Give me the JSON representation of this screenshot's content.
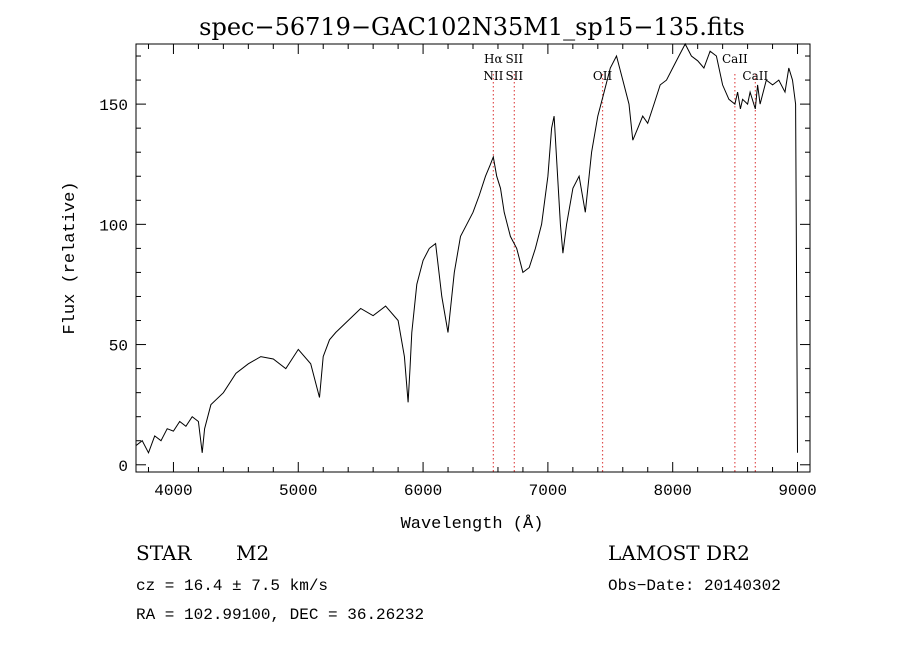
{
  "chart_data": {
    "type": "line",
    "title": "spec−56719−GAC102N35M1_sp15−135.fits",
    "xlabel": "Wavelength (Å)",
    "ylabel": "Flux (relative)",
    "xlim": [
      3700,
      9100
    ],
    "ylim": [
      -3,
      175
    ],
    "x_ticks": [
      4000,
      5000,
      6000,
      7000,
      8000,
      9000
    ],
    "y_ticks": [
      0,
      50,
      100,
      150
    ],
    "x_tick_labels": [
      "4000",
      "5000",
      "6000",
      "7000",
      "8000",
      "9000"
    ],
    "y_tick_labels": [
      "0",
      "50",
      "100",
      "150"
    ],
    "grid": false,
    "line_color": "#000000",
    "marker_color": "#e05050",
    "series": [
      {
        "x": [
          3700,
          3750,
          3800,
          3850,
          3900,
          3950,
          4000,
          4050,
          4100,
          4150,
          4200,
          4230,
          4250,
          4300,
          4400,
          4500,
          4600,
          4700,
          4800,
          4900,
          5000,
          5100,
          5170,
          5200,
          5250,
          5300,
          5400,
          5500,
          5600,
          5700,
          5800,
          5850,
          5880,
          5895,
          5910,
          5950,
          6000,
          6050,
          6100,
          6150,
          6200,
          6250,
          6300,
          6350,
          6400,
          6450,
          6500,
          6540,
          6563,
          6590,
          6620,
          6650,
          6700,
          6750,
          6800,
          6850,
          6900,
          6950,
          7000,
          7030,
          7050,
          7100,
          7120,
          7150,
          7200,
          7250,
          7300,
          7350,
          7400,
          7450,
          7500,
          7550,
          7600,
          7650,
          7680,
          7720,
          7760,
          7800,
          7850,
          7900,
          7950,
          8000,
          8050,
          8100,
          8150,
          8200,
          8250,
          8300,
          8350,
          8400,
          8450,
          8498,
          8520,
          8542,
          8560,
          8600,
          8620,
          8662,
          8680,
          8700,
          8750,
          8800,
          8850,
          8900,
          8930,
          8960,
          8985,
          9000
        ],
        "y": [
          8,
          10,
          5,
          12,
          10,
          15,
          14,
          18,
          16,
          20,
          18,
          5,
          15,
          25,
          30,
          38,
          42,
          45,
          44,
          40,
          48,
          42,
          28,
          45,
          52,
          55,
          60,
          65,
          62,
          66,
          60,
          45,
          26,
          40,
          55,
          75,
          85,
          90,
          92,
          70,
          55,
          80,
          95,
          100,
          105,
          112,
          120,
          125,
          128,
          120,
          115,
          105,
          95,
          90,
          80,
          82,
          90,
          100,
          120,
          140,
          145,
          100,
          88,
          100,
          115,
          120,
          105,
          130,
          145,
          155,
          165,
          170,
          160,
          150,
          135,
          140,
          145,
          142,
          150,
          158,
          160,
          165,
          170,
          175,
          170,
          168,
          165,
          172,
          170,
          158,
          152,
          150,
          155,
          148,
          152,
          150,
          155,
          148,
          158,
          150,
          160,
          158,
          160,
          155,
          165,
          160,
          150,
          5
        ]
      }
    ],
    "lines": [
      {
        "x": 6563,
        "label_top": "Hα",
        "label_bottom": "NII"
      },
      {
        "x": 6731,
        "label_top": "SII",
        "label_bottom": "SII"
      },
      {
        "x": 7438,
        "label_top": "",
        "label_bottom": "OII"
      },
      {
        "x": 8498,
        "label_top": "CaII",
        "label_bottom": ""
      },
      {
        "x": 8662,
        "label_top": "",
        "label_bottom": "CaII"
      }
    ]
  },
  "info": {
    "object_class": "STAR",
    "subclass": "M2",
    "cz_text": "cz = 16.4 ± 7.5 km/s",
    "coords_text": "RA = 102.99100, DEC =  36.26232",
    "survey": "LAMOST DR2",
    "obs_date_text": "Obs−Date: 20140302"
  }
}
